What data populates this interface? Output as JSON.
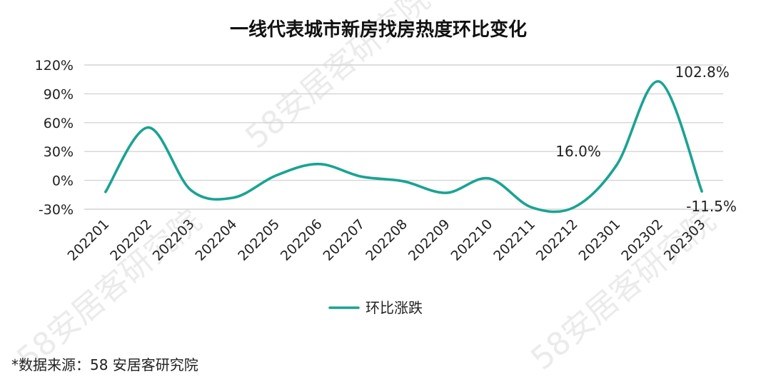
{
  "chart_data": {
    "type": "line",
    "title": "一线代表城市新房找房热度环比变化",
    "categories": [
      "202201",
      "202202",
      "202203",
      "202204",
      "202205",
      "202206",
      "202207",
      "202208",
      "202209",
      "202210",
      "202211",
      "202212",
      "202301",
      "202302",
      "202303"
    ],
    "series": [
      {
        "name": "环比涨跌",
        "color": "#1aa392",
        "values": [
          -12,
          55,
          -10,
          -18,
          5,
          17,
          4,
          -1,
          -13,
          2,
          -28,
          -28,
          16.0,
          102.8,
          -11.5
        ]
      }
    ],
    "ylim": [
      -30,
      120
    ],
    "yticks": [
      -30,
      0,
      30,
      60,
      90,
      120
    ],
    "ytick_labels": [
      "-30%",
      "0%",
      "30%",
      "60%",
      "90%",
      "120%"
    ],
    "data_labels": [
      {
        "index": 12,
        "text": "16.0%"
      },
      {
        "index": 13,
        "text": "102.8%"
      },
      {
        "index": 14,
        "text": "-11.5%"
      }
    ],
    "grid": true,
    "smooth": true,
    "legend_position": "bottom"
  },
  "source_note": "*数据来源：58 安居客研究院",
  "watermark": "58安居客研究院"
}
